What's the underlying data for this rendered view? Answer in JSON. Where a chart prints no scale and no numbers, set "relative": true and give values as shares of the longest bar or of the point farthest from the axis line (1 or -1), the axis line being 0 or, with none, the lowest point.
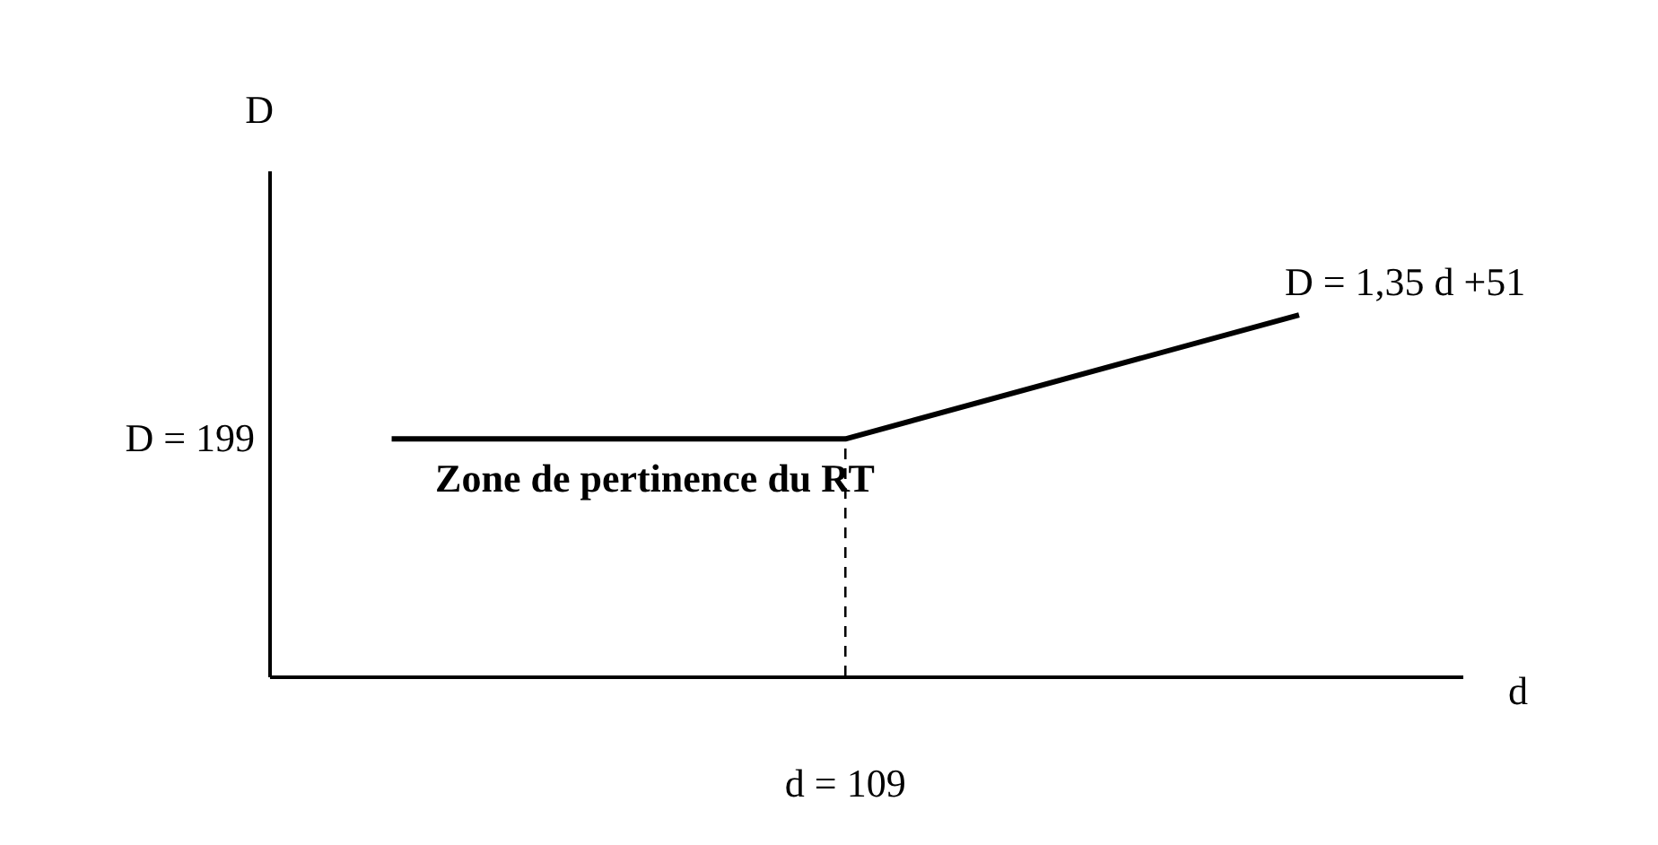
{
  "chart_data": {
    "type": "line",
    "relative": true,
    "ylabel": "D",
    "xlabel": "d",
    "categories": [
      null,
      null,
      null
    ],
    "series": [
      {
        "color": "#000000",
        "values": [
          0.657,
          0.657,
          1
        ]
      }
    ],
    "ref_lines": [
      {
        "axis": "x",
        "label": "d = 109",
        "line_style": "dashed",
        "color": "#000000"
      }
    ],
    "annotations": [
      "Zone de pertinence du RT",
      "D = 1,35 d +51",
      "D = 199"
    ],
    "line_style": "solid"
  }
}
